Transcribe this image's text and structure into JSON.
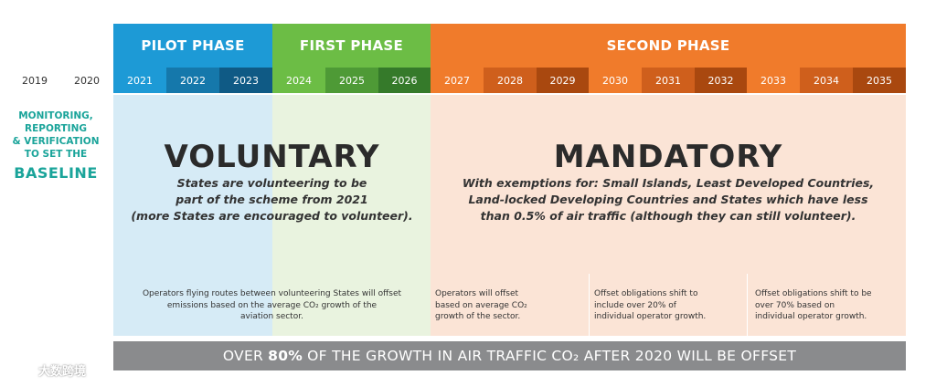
{
  "phases": {
    "pilot": "PILOT PHASE",
    "first": "FIRST PHASE",
    "second": "SECOND PHASE"
  },
  "years": [
    "2019",
    "2020",
    "2021",
    "2022",
    "2023",
    "2024",
    "2025",
    "2026",
    "2027",
    "2028",
    "2029",
    "2030",
    "2031",
    "2032",
    "2033",
    "2034",
    "2035"
  ],
  "colors": {
    "pilot": "#1d9ad6",
    "first": "#6cbd45",
    "second": "#f07b2b",
    "teal": "#1aa49a",
    "banner": "#8a8b8d"
  },
  "baseline": {
    "note_lines": [
      "MONITORING,",
      "REPORTING",
      "& VERIFICATION",
      "TO SET THE"
    ],
    "word": "BASELINE"
  },
  "voluntary": {
    "title": "VOLUNTARY",
    "lines": [
      "States are volunteering to be",
      "part of the scheme from 2021",
      "(more States are encouraged to volunteer)."
    ]
  },
  "mandatory": {
    "title": "MANDATORY",
    "lines": [
      "With exemptions for: Small Islands, Least Developed Countries,",
      "Land-locked Developing Countries and States which have less",
      "than 0.5% of air traffic (although they can still volunteer)."
    ]
  },
  "notes": {
    "average_routes": [
      "Operators flying routes between volunteering States will offset",
      "emissions based on the average CO₂ growth of the",
      "aviation sector."
    ],
    "average_sector": [
      "Operators will offset",
      "based on average CO₂",
      "growth of the sector."
    ],
    "shift_20": [
      "Offset obligations shift to",
      "include over 20% of",
      "individual operator growth."
    ],
    "shift_70": [
      "Offset obligations shift to be",
      "over 70% based on",
      "individual operator growth."
    ]
  },
  "banner": {
    "prefix": "OVER",
    "highlight": "80%",
    "suffix": "OF THE GROWTH IN AIR TRAFFIC CO₂ AFTER 2020 WILL BE OFFSET"
  },
  "watermark": {
    "text": "大数跨境"
  }
}
